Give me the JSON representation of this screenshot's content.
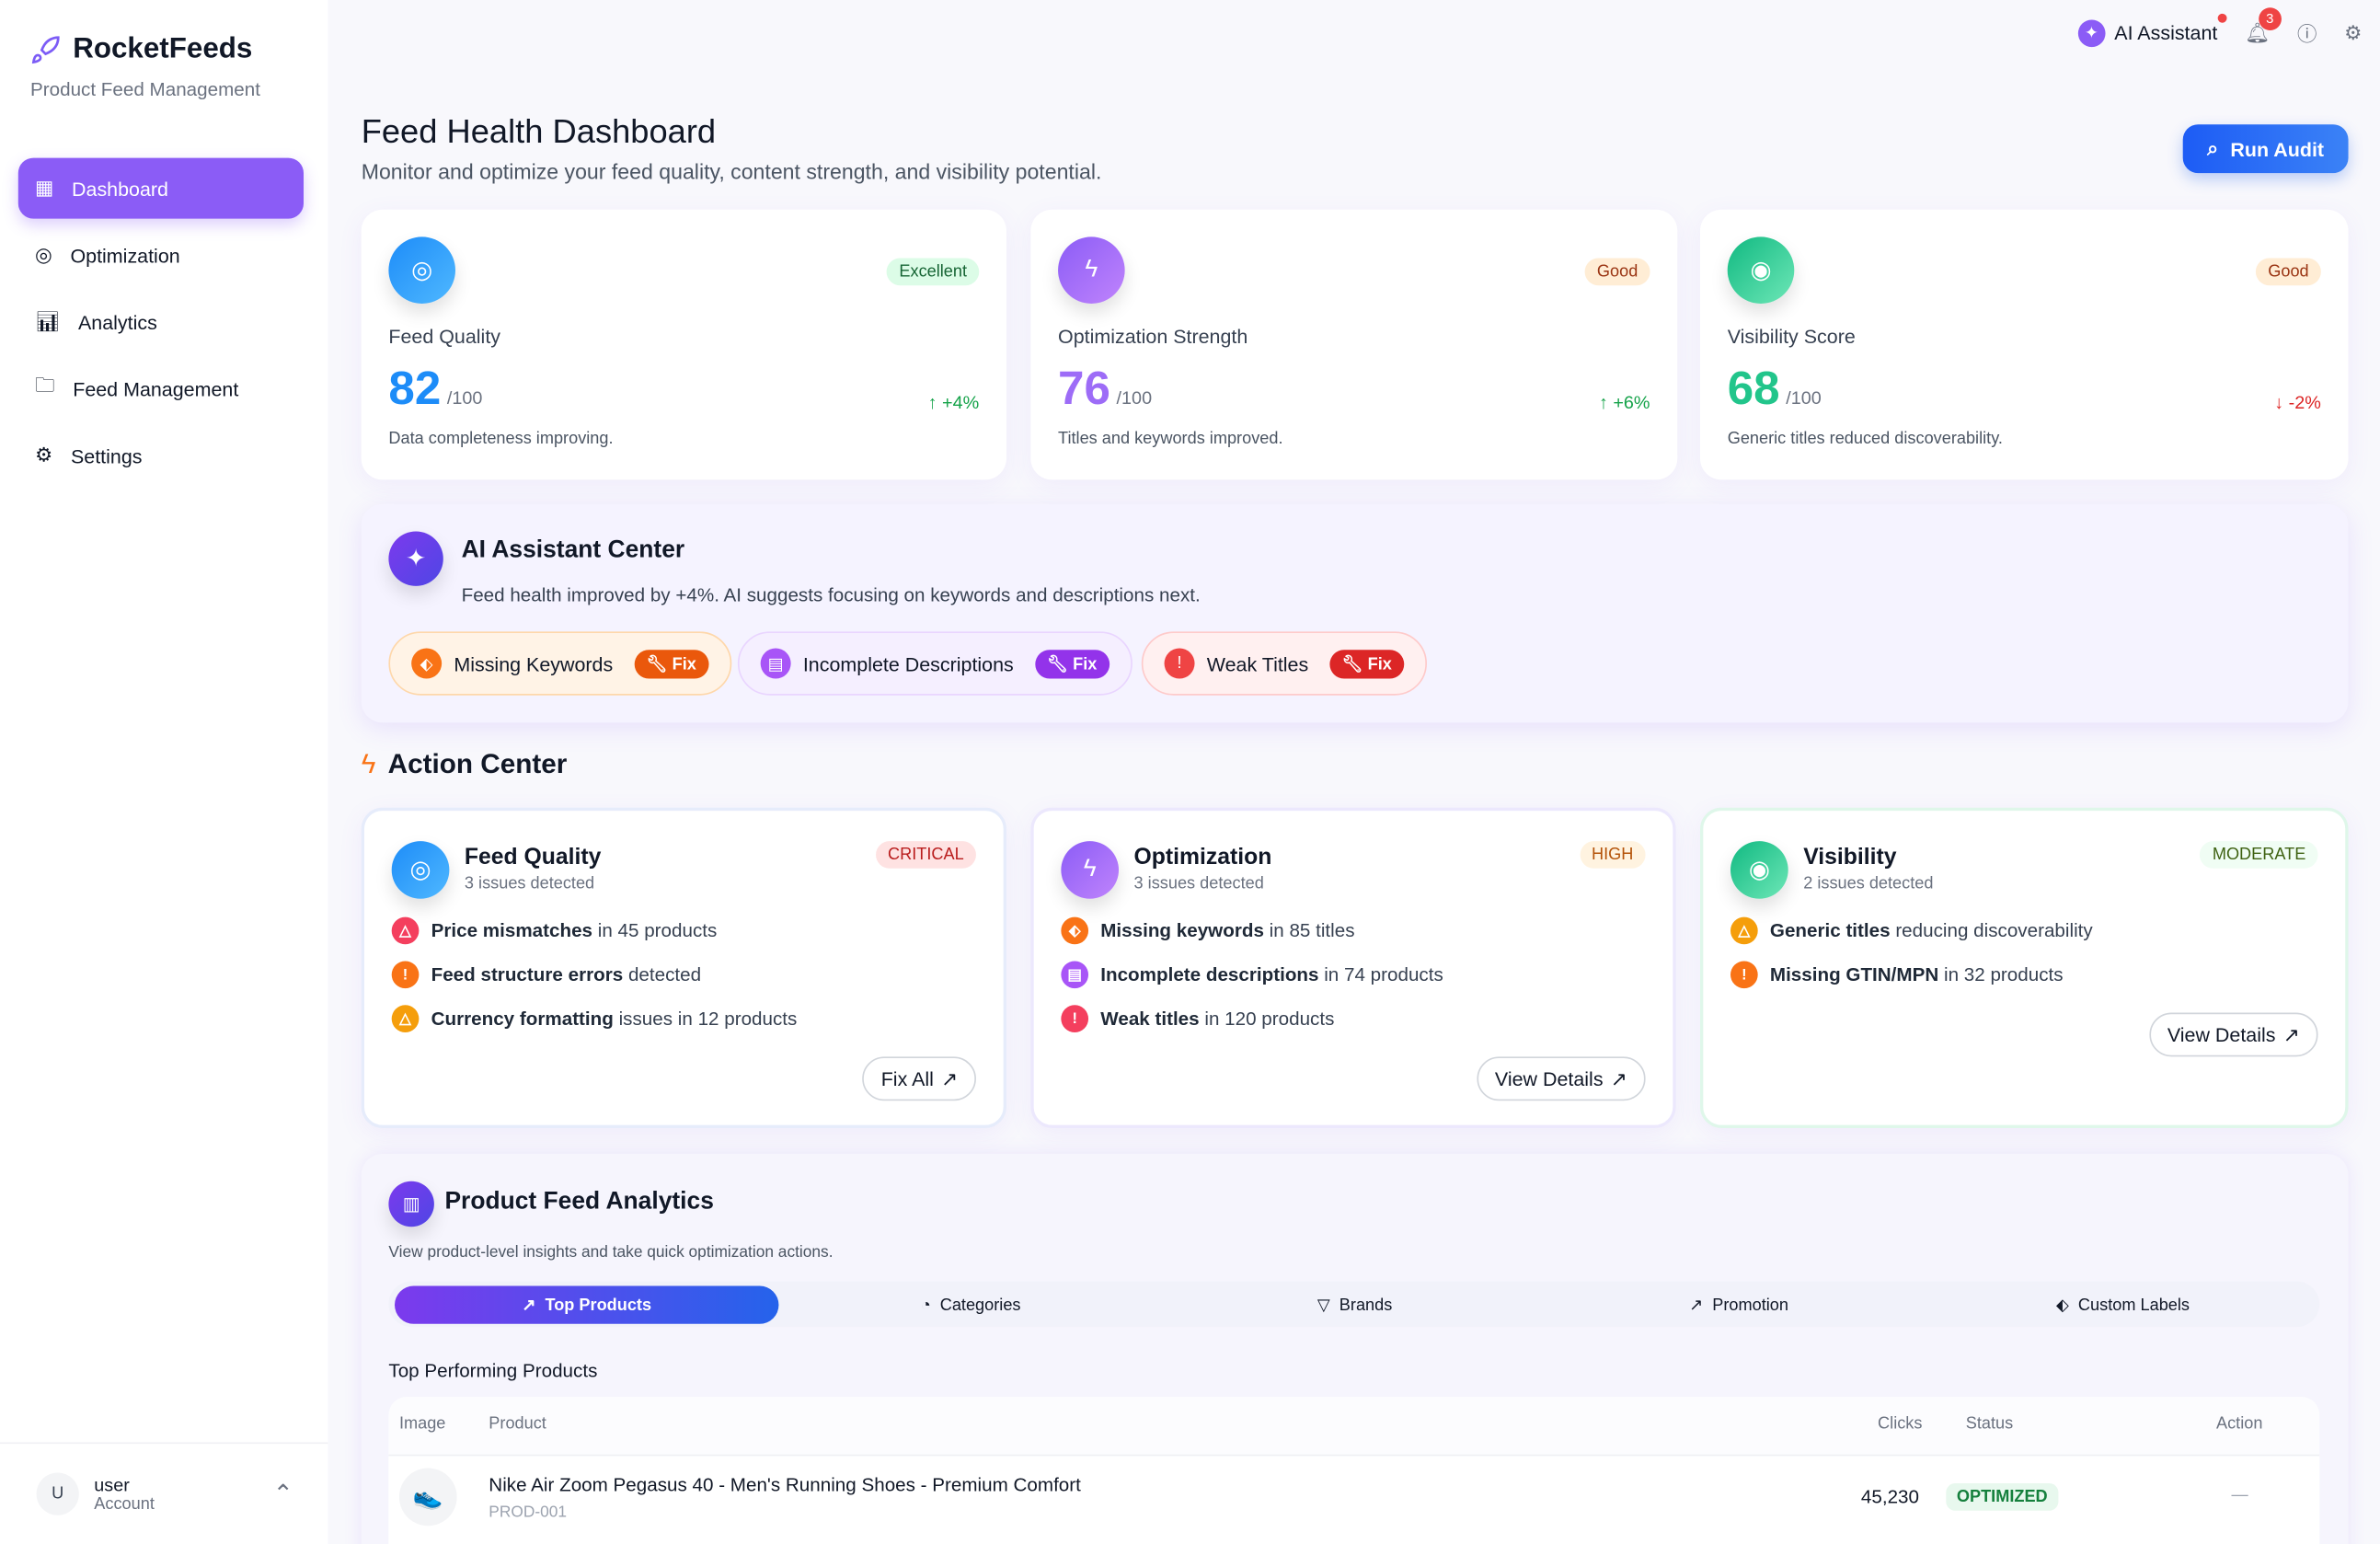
{
  "brand": {
    "name": "RocketFeeds",
    "tagline": "Product Feed Management",
    "accent": "#8b5cf6"
  },
  "sidebar": {
    "items": [
      {
        "label": "Dashboard",
        "icon": "grid-icon",
        "active": true
      },
      {
        "label": "Optimization",
        "icon": "target-icon"
      },
      {
        "label": "Analytics",
        "icon": "bar-chart-icon"
      },
      {
        "label": "Feed Management",
        "icon": "folder-sync-icon"
      },
      {
        "label": "Settings",
        "icon": "gear-icon"
      }
    ],
    "user": {
      "initial": "U",
      "name": "user",
      "role": "Account"
    }
  },
  "topbar": {
    "ai_assistant": "AI Assistant",
    "notifications": "3"
  },
  "header": {
    "title": "Feed Health Dashboard",
    "subtitle": "Monitor and optimize your feed quality, content strength, and visibility potential.",
    "run_audit": "Run Audit"
  },
  "stats": [
    {
      "label": "Feed Quality",
      "value": "82",
      "of": "/100",
      "badge": "Excellent",
      "delta": "+4%",
      "direction": "up",
      "desc": "Data completeness improving.",
      "color": "#1d8cf8"
    },
    {
      "label": "Optimization Strength",
      "value": "76",
      "of": "/100",
      "badge": "Good",
      "delta": "+6%",
      "direction": "up",
      "desc": "Titles and keywords improved.",
      "color": "#8b5cf6"
    },
    {
      "label": "Visibility Score",
      "value": "68",
      "of": "/100",
      "badge": "Good",
      "delta": "-2%",
      "direction": "down",
      "desc": "Generic titles reduced discoverability.",
      "color": "#10b981"
    }
  ],
  "ai_center": {
    "title": "AI Assistant Center",
    "text": "Feed health improved by +4%. AI suggests focusing on keywords and descriptions next.",
    "fix": "Fix",
    "chips": [
      {
        "label": "Missing Keywords",
        "color": "#f97316"
      },
      {
        "label": "Incomplete Descriptions",
        "color": "#a855f7"
      },
      {
        "label": "Weak Titles",
        "color": "#ef4444"
      }
    ]
  },
  "action_center": {
    "title": "Action Center",
    "cards": [
      {
        "title": "Feed Quality",
        "count": "3 issues detected",
        "severity": "CRITICAL",
        "button": "Fix All",
        "issues": [
          {
            "bold": "Price mismatches",
            "rest": " in 45 products"
          },
          {
            "bold": "Feed structure errors",
            "rest": " detected"
          },
          {
            "bold": "Currency formatting",
            "rest": " issues in 12 products"
          }
        ]
      },
      {
        "title": "Optimization",
        "count": "3 issues detected",
        "severity": "HIGH",
        "button": "View Details",
        "issues": [
          {
            "bold": "Missing keywords",
            "rest": " in 85 titles"
          },
          {
            "bold": "Incomplete descriptions",
            "rest": " in 74 products"
          },
          {
            "bold": "Weak titles",
            "rest": " in 120 products"
          }
        ]
      },
      {
        "title": "Visibility",
        "count": "2 issues detected",
        "severity": "MODERATE",
        "button": "View Details",
        "issues": [
          {
            "bold": "Generic titles",
            "rest": " reducing discoverability"
          },
          {
            "bold": "Missing GTIN/MPN",
            "rest": " in 32 products"
          }
        ]
      }
    ]
  },
  "analytics": {
    "title": "Product Feed Analytics",
    "subtitle": "View product-level insights and take quick optimization actions.",
    "tabs": [
      "Top Products",
      "Categories",
      "Brands",
      "Promotion",
      "Custom Labels"
    ],
    "section": "Top Performing Products",
    "columns": [
      "Image",
      "Product",
      "Clicks",
      "Status",
      "Action"
    ],
    "rows": [
      {
        "name": "Nike Air Zoom Pegasus 40 - Men's Running Shoes - Premium Comfort",
        "id": "PROD-001",
        "clicks": "45,230",
        "status": "OPTIMIZED",
        "action": "—"
      }
    ]
  }
}
